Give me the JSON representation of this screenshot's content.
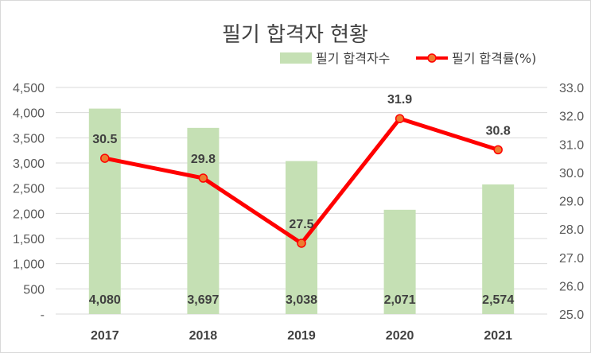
{
  "chart_data": {
    "type": "bar+line",
    "title": "필기 합격자 현황",
    "categories": [
      "2017",
      "2018",
      "2019",
      "2020",
      "2021"
    ],
    "series": [
      {
        "name": "필기 합격자수",
        "type": "bar",
        "axis": "left",
        "values": [
          4080,
          3697,
          3038,
          2071,
          2574
        ],
        "labels": [
          "4,080",
          "3,697",
          "3,038",
          "2,071",
          "2,574"
        ],
        "color": "#c5e0b4"
      },
      {
        "name": "필기 합격률(%)",
        "type": "line",
        "axis": "right",
        "values": [
          30.5,
          29.8,
          27.5,
          31.9,
          30.8
        ],
        "labels": [
          "30.5",
          "29.8",
          "27.5",
          "31.9",
          "30.8"
        ],
        "color": "#ff0000",
        "marker_color": "#ed7d31"
      }
    ],
    "y_left": {
      "min": 0,
      "max": 4500,
      "ticks": [
        0,
        500,
        1000,
        1500,
        2000,
        2500,
        3000,
        3500,
        4000,
        4500
      ],
      "tick_labels": [
        "-",
        "500",
        "1,000",
        "1,500",
        "2,000",
        "2,500",
        "3,000",
        "3,500",
        "4,000",
        "4,500"
      ]
    },
    "y_right": {
      "min": 25.0,
      "max": 33.0,
      "ticks": [
        25,
        26,
        27,
        28,
        29,
        30,
        31,
        32,
        33
      ],
      "tick_labels": [
        "25.0",
        "26.0",
        "27.0",
        "28.0",
        "29.0",
        "30.0",
        "31.0",
        "32.0",
        "33.0"
      ]
    },
    "grid": true,
    "legend_position": "top-right",
    "gridline_color": "#d9d9d9"
  }
}
